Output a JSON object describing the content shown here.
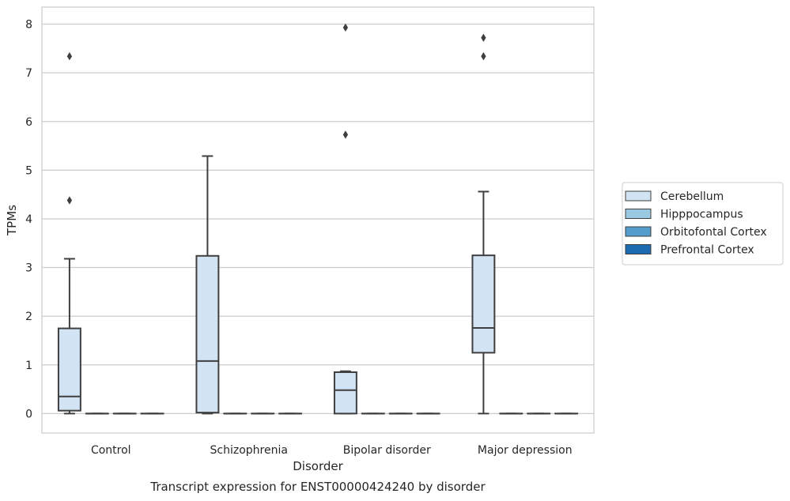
{
  "chart_data": {
    "type": "box",
    "title": "",
    "caption": "Transcript expression for ENST00000424240 by disorder",
    "xlabel": "Disorder",
    "ylabel": "TPMs",
    "ylim": [
      -0.4,
      8.35
    ],
    "yticks": [
      0,
      1,
      2,
      3,
      4,
      5,
      6,
      7,
      8
    ],
    "grid": true,
    "legend_position": "right",
    "categories": [
      "Control",
      "Schizophrenia",
      "Bipolar disorder",
      "Major depression"
    ],
    "series": [
      {
        "name": "Cerebellum",
        "color": "#d2e3f3",
        "boxes": [
          {
            "category": "Control",
            "whisker_low": 0.0,
            "q1": 0.06,
            "median": 0.35,
            "q3": 1.75,
            "whisker_high": 3.18,
            "outliers": [
              4.38,
              7.34
            ]
          },
          {
            "category": "Schizophrenia",
            "whisker_low": 0.0,
            "q1": 0.02,
            "median": 1.08,
            "q3": 3.24,
            "whisker_high": 5.29,
            "outliers": []
          },
          {
            "category": "Bipolar disorder",
            "whisker_low": 0.0,
            "q1": 0.0,
            "median": 0.48,
            "q3": 0.85,
            "whisker_high": 0.87,
            "outliers": [
              5.73,
              7.93
            ]
          },
          {
            "category": "Major depression",
            "whisker_low": 0.0,
            "q1": 1.25,
            "median": 1.76,
            "q3": 3.25,
            "whisker_high": 4.56,
            "outliers": [
              7.34,
              7.72
            ]
          }
        ]
      },
      {
        "name": "Hipppocampus",
        "color": "#9ac8e0",
        "boxes": [
          {
            "category": "Control",
            "whisker_low": 0,
            "q1": 0,
            "median": 0,
            "q3": 0,
            "whisker_high": 0,
            "outliers": []
          },
          {
            "category": "Schizophrenia",
            "whisker_low": 0,
            "q1": 0,
            "median": 0,
            "q3": 0,
            "whisker_high": 0,
            "outliers": []
          },
          {
            "category": "Bipolar disorder",
            "whisker_low": 0,
            "q1": 0,
            "median": 0,
            "q3": 0,
            "whisker_high": 0,
            "outliers": []
          },
          {
            "category": "Major depression",
            "whisker_low": 0,
            "q1": 0,
            "median": 0,
            "q3": 0,
            "whisker_high": 0,
            "outliers": []
          }
        ]
      },
      {
        "name": "Orbitofontal Cortex",
        "color": "#529dcc",
        "boxes": [
          {
            "category": "Control",
            "whisker_low": 0,
            "q1": 0,
            "median": 0,
            "q3": 0,
            "whisker_high": 0,
            "outliers": []
          },
          {
            "category": "Schizophrenia",
            "whisker_low": 0,
            "q1": 0,
            "median": 0,
            "q3": 0,
            "whisker_high": 0,
            "outliers": []
          },
          {
            "category": "Bipolar disorder",
            "whisker_low": 0,
            "q1": 0,
            "median": 0,
            "q3": 0,
            "whisker_high": 0,
            "outliers": []
          },
          {
            "category": "Major depression",
            "whisker_low": 0,
            "q1": 0,
            "median": 0,
            "q3": 0,
            "whisker_high": 0,
            "outliers": []
          }
        ]
      },
      {
        "name": "Prefrontal Cortex",
        "color": "#1c6aaf",
        "boxes": [
          {
            "category": "Control",
            "whisker_low": 0,
            "q1": 0,
            "median": 0,
            "q3": 0,
            "whisker_high": 0,
            "outliers": []
          },
          {
            "category": "Schizophrenia",
            "whisker_low": 0,
            "q1": 0,
            "median": 0,
            "q3": 0,
            "whisker_high": 0,
            "outliers": []
          },
          {
            "category": "Bipolar disorder",
            "whisker_low": 0,
            "q1": 0,
            "median": 0,
            "q3": 0,
            "whisker_high": 0,
            "outliers": []
          },
          {
            "category": "Major depression",
            "whisker_low": 0,
            "q1": 0,
            "median": 0,
            "q3": 0,
            "whisker_high": 0,
            "outliers": []
          }
        ]
      }
    ]
  }
}
